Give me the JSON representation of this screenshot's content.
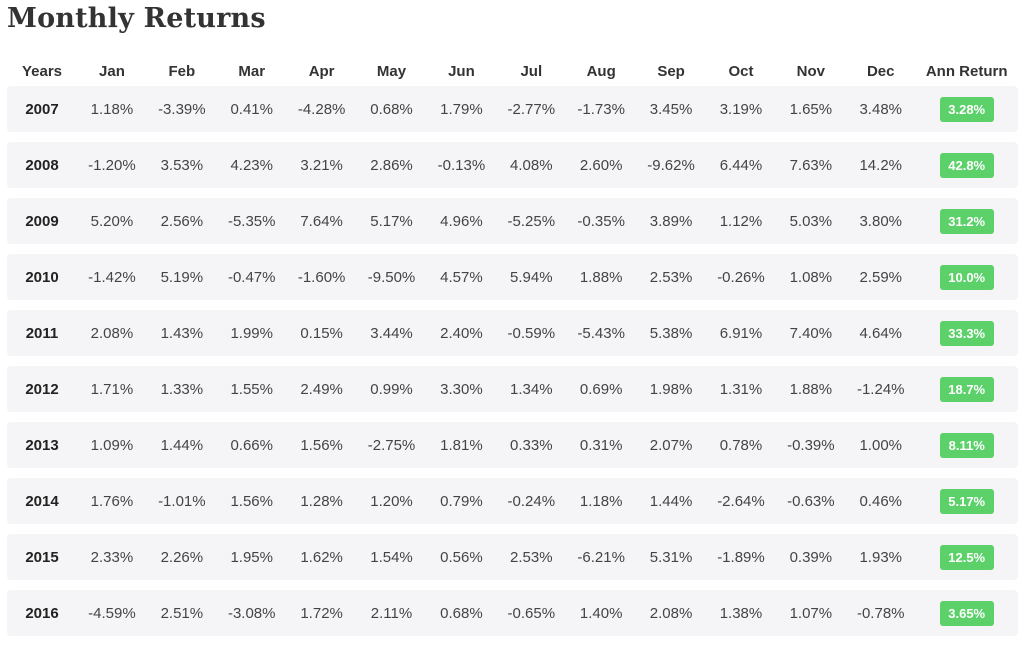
{
  "title": "Monthly Returns",
  "headers": [
    "Years",
    "Jan",
    "Feb",
    "Mar",
    "Apr",
    "May",
    "Jun",
    "Jul",
    "Aug",
    "Sep",
    "Oct",
    "Nov",
    "Dec",
    "Ann Return"
  ],
  "rows": [
    {
      "year": "2007",
      "months": [
        "1.18%",
        "-3.39%",
        "0.41%",
        "-4.28%",
        "0.68%",
        "1.79%",
        "-2.77%",
        "-1.73%",
        "3.45%",
        "3.19%",
        "1.65%",
        "3.48%"
      ],
      "ann": "3.28%"
    },
    {
      "year": "2008",
      "months": [
        "-1.20%",
        "3.53%",
        "4.23%",
        "3.21%",
        "2.86%",
        "-0.13%",
        "4.08%",
        "2.60%",
        "-9.62%",
        "6.44%",
        "7.63%",
        "14.2%"
      ],
      "ann": "42.8%"
    },
    {
      "year": "2009",
      "months": [
        "5.20%",
        "2.56%",
        "-5.35%",
        "7.64%",
        "5.17%",
        "4.96%",
        "-5.25%",
        "-0.35%",
        "3.89%",
        "1.12%",
        "5.03%",
        "3.80%"
      ],
      "ann": "31.2%"
    },
    {
      "year": "2010",
      "months": [
        "-1.42%",
        "5.19%",
        "-0.47%",
        "-1.60%",
        "-9.50%",
        "4.57%",
        "5.94%",
        "1.88%",
        "2.53%",
        "-0.26%",
        "1.08%",
        "2.59%"
      ],
      "ann": "10.0%"
    },
    {
      "year": "2011",
      "months": [
        "2.08%",
        "1.43%",
        "1.99%",
        "0.15%",
        "3.44%",
        "2.40%",
        "-0.59%",
        "-5.43%",
        "5.38%",
        "6.91%",
        "7.40%",
        "4.64%"
      ],
      "ann": "33.3%"
    },
    {
      "year": "2012",
      "months": [
        "1.71%",
        "1.33%",
        "1.55%",
        "2.49%",
        "0.99%",
        "3.30%",
        "1.34%",
        "0.69%",
        "1.98%",
        "1.31%",
        "1.88%",
        "-1.24%"
      ],
      "ann": "18.7%"
    },
    {
      "year": "2013",
      "months": [
        "1.09%",
        "1.44%",
        "0.66%",
        "1.56%",
        "-2.75%",
        "1.81%",
        "0.33%",
        "0.31%",
        "2.07%",
        "0.78%",
        "-0.39%",
        "1.00%"
      ],
      "ann": "8.11%"
    },
    {
      "year": "2014",
      "months": [
        "1.76%",
        "-1.01%",
        "1.56%",
        "1.28%",
        "1.20%",
        "0.79%",
        "-0.24%",
        "1.18%",
        "1.44%",
        "-2.64%",
        "-0.63%",
        "0.46%"
      ],
      "ann": "5.17%"
    },
    {
      "year": "2015",
      "months": [
        "2.33%",
        "2.26%",
        "1.95%",
        "1.62%",
        "1.54%",
        "0.56%",
        "2.53%",
        "-6.21%",
        "5.31%",
        "-1.89%",
        "0.39%",
        "1.93%"
      ],
      "ann": "12.5%"
    },
    {
      "year": "2016",
      "months": [
        "-4.59%",
        "2.51%",
        "-3.08%",
        "1.72%",
        "2.11%",
        "0.68%",
        "-0.65%",
        "1.40%",
        "2.08%",
        "1.38%",
        "1.07%",
        "-0.78%"
      ],
      "ann": "3.65%"
    }
  ],
  "colors": {
    "badge": "#5cd16a",
    "row_bg": "#f5f5f8"
  }
}
